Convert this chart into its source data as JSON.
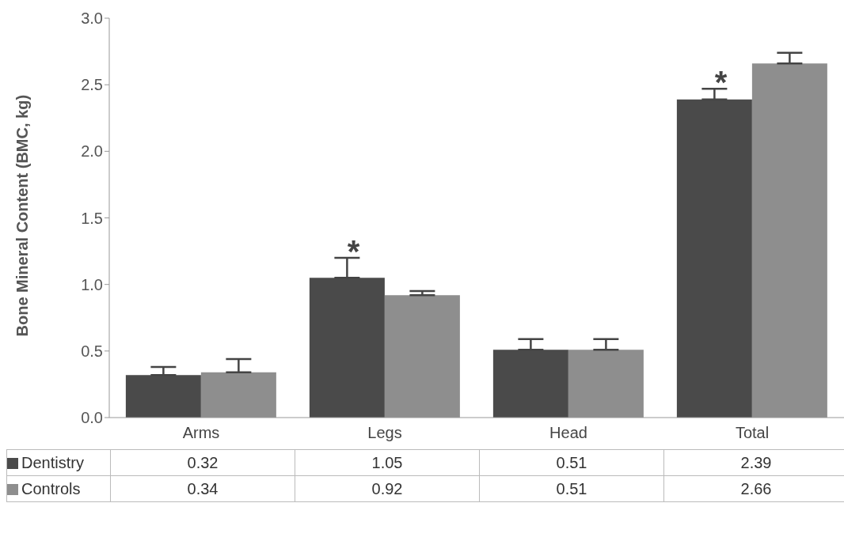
{
  "chart_data": {
    "type": "bar",
    "ylabel": "Bone Mineral Content (BMC, kg)",
    "categories": [
      "Arms",
      "Legs",
      "Head",
      "Total"
    ],
    "series": [
      {
        "name": "Dentistry",
        "color": "#4a4a4a",
        "values": [
          0.32,
          1.05,
          0.51,
          2.39
        ],
        "errors": [
          [
            0.32,
            0.38
          ],
          [
            1.05,
            1.2
          ],
          [
            0.51,
            0.59
          ],
          [
            2.39,
            2.47
          ]
        ]
      },
      {
        "name": "Controls",
        "color": "#8e8e8e",
        "values": [
          0.34,
          0.92,
          0.51,
          2.66
        ],
        "errors": [
          [
            0.34,
            0.44
          ],
          [
            0.92,
            0.95
          ],
          [
            0.51,
            0.59
          ],
          [
            2.66,
            2.74
          ]
        ]
      }
    ],
    "ylim": [
      0,
      3
    ],
    "yticks": [
      {
        "value": 0,
        "label": "0.0"
      },
      {
        "value": 0.5,
        "label": "0.5"
      },
      {
        "value": 1,
        "label": "1.0"
      },
      {
        "value": 1.5,
        "label": "1.5"
      },
      {
        "value": 2,
        "label": "2.0"
      },
      {
        "value": 2.5,
        "label": "2.5"
      },
      {
        "value": 3,
        "label": "3.0"
      }
    ],
    "annotations": [
      "*",
      "*"
    ],
    "data_labels": true,
    "legend": "bottom"
  }
}
